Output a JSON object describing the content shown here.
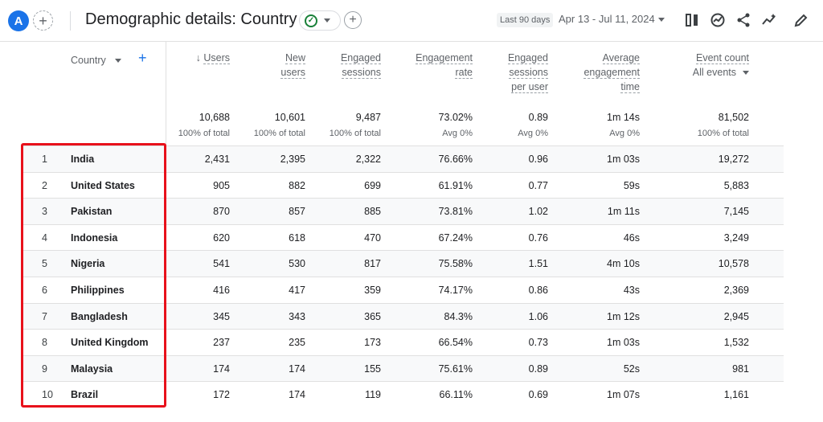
{
  "header": {
    "avatar_letter": "A",
    "add_symbol": "+",
    "title": "Demographic details: Country",
    "date_chip": "Last 90 days",
    "date_range": "Apr 13 - Jul 11, 2024"
  },
  "icons": [
    "compare-icon",
    "insights-icon",
    "share-icon",
    "trend-icon",
    "edit-icon"
  ],
  "colors": {
    "accent": "#1a73e8",
    "highlight": "#e8111b",
    "check": "#188038"
  },
  "table": {
    "dimension_label": "Country",
    "add_symbol": "+",
    "columns": [
      {
        "lines": [
          "Users"
        ],
        "sorted": true
      },
      {
        "lines": [
          "New",
          "users"
        ]
      },
      {
        "lines": [
          "Engaged",
          "sessions"
        ]
      },
      {
        "lines": [
          "Engagement",
          "rate"
        ]
      },
      {
        "lines": [
          "Engaged",
          "sessions",
          "per user"
        ]
      },
      {
        "lines": [
          "Average",
          "engagement",
          "time"
        ]
      },
      {
        "lines": [
          "Event count"
        ],
        "sub": "All events"
      }
    ],
    "totals": [
      {
        "value": "10,688",
        "sub": "100% of total"
      },
      {
        "value": "10,601",
        "sub": "100% of total"
      },
      {
        "value": "9,487",
        "sub": "100% of total"
      },
      {
        "value": "73.02%",
        "sub": "Avg 0%"
      },
      {
        "value": "0.89",
        "sub": "Avg 0%"
      },
      {
        "value": "1m 14s",
        "sub": "Avg 0%"
      },
      {
        "value": "81,502",
        "sub": "100% of total"
      }
    ],
    "rows": [
      {
        "rank": "1",
        "country": "India",
        "values": [
          "2,431",
          "2,395",
          "2,322",
          "76.66%",
          "0.96",
          "1m 03s",
          "19,272"
        ]
      },
      {
        "rank": "2",
        "country": "United States",
        "values": [
          "905",
          "882",
          "699",
          "61.91%",
          "0.77",
          "59s",
          "5,883"
        ]
      },
      {
        "rank": "3",
        "country": "Pakistan",
        "values": [
          "870",
          "857",
          "885",
          "73.81%",
          "1.02",
          "1m 11s",
          "7,145"
        ]
      },
      {
        "rank": "4",
        "country": "Indonesia",
        "values": [
          "620",
          "618",
          "470",
          "67.24%",
          "0.76",
          "46s",
          "3,249"
        ]
      },
      {
        "rank": "5",
        "country": "Nigeria",
        "values": [
          "541",
          "530",
          "817",
          "75.58%",
          "1.51",
          "4m 10s",
          "10,578"
        ]
      },
      {
        "rank": "6",
        "country": "Philippines",
        "values": [
          "416",
          "417",
          "359",
          "74.17%",
          "0.86",
          "43s",
          "2,369"
        ]
      },
      {
        "rank": "7",
        "country": "Bangladesh",
        "values": [
          "345",
          "343",
          "365",
          "84.3%",
          "1.06",
          "1m 12s",
          "2,945"
        ]
      },
      {
        "rank": "8",
        "country": "United Kingdom",
        "values": [
          "237",
          "235",
          "173",
          "66.54%",
          "0.73",
          "1m 03s",
          "1,532"
        ]
      },
      {
        "rank": "9",
        "country": "Malaysia",
        "values": [
          "174",
          "174",
          "155",
          "75.61%",
          "0.89",
          "52s",
          "981"
        ]
      },
      {
        "rank": "10",
        "country": "Brazil",
        "values": [
          "172",
          "174",
          "119",
          "66.11%",
          "0.69",
          "1m 07s",
          "1,161"
        ]
      }
    ]
  }
}
